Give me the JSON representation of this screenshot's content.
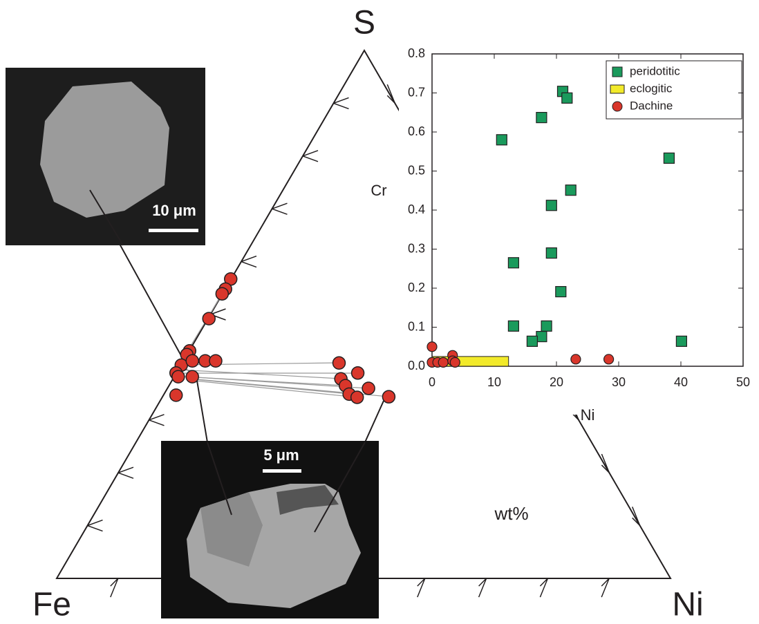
{
  "chart_data": [
    {
      "type": "ternary",
      "corner_labels": {
        "top": "S",
        "left": "Fe",
        "right": "Ni"
      },
      "unit_label": "wt%",
      "series": [
        {
          "color": "#d9362b",
          "S": [
            56.7,
            54.8,
            53.9,
            49.2,
            43.1,
            42.4,
            40.4,
            41.2,
            41.2,
            41.2,
            38.9,
            38.2,
            38.2,
            34.7,
            40.8,
            37.8,
            38.9,
            36.5,
            36.0,
            34.9,
            34.3,
            34.4
          ],
          "Ni": [
            0,
            0.1,
            0,
            0.2,
            0.1,
            0,
            0.1,
            1.5,
            3.6,
            5.3,
            0,
            0.7,
            3.0,
            2.1,
            25.6,
            27.4,
            29.6,
            28.8,
            32.8,
            30.2,
            31.8,
            36.9
          ]
        }
      ]
    },
    {
      "type": "scatter",
      "xlabel": "Ni",
      "ylabel": "Cr",
      "xlim": [
        0,
        50
      ],
      "xticks": [
        0,
        10,
        20,
        30,
        40,
        50
      ],
      "ylim": [
        0,
        0.8
      ],
      "yticks": [
        {
          "value": 0,
          "label": "0.0"
        },
        0.1,
        0.2,
        0.3,
        0.4,
        0.5,
        0.6,
        0.7,
        0.8
      ],
      "legend": "upper right",
      "series": [
        {
          "name": "peridotitic",
          "color": "#1a9a5c",
          "marker": "square",
          "x": [
            11.2,
            17.6,
            21.0,
            21.7,
            38.1,
            22.3,
            19.2,
            19.2,
            13.1,
            20.7,
            13.1,
            18.4,
            17.6,
            16.1,
            40.1
          ],
          "values": [
            0.58,
            0.637,
            0.704,
            0.687,
            0.533,
            0.451,
            0.412,
            0.29,
            0.265,
            0.191,
            0.103,
            0.103,
            0.076,
            0.064,
            0.064
          ]
        },
        {
          "name": "eclogitic",
          "color": "#f2ea2a",
          "marker": "range",
          "xrange": [
            0,
            12.3
          ],
          "yrange": [
            0,
            0.025
          ]
        },
        {
          "name": "Dachine",
          "color": "#d9362b",
          "marker": "circle",
          "x": [
            0,
            0,
            0.9,
            1.8,
            3.3,
            3.3,
            3.7,
            23.1,
            28.4
          ],
          "values": [
            0.05,
            0.01,
            0.01,
            0.01,
            0.028,
            0.014,
            0.01,
            0.018,
            0.018
          ]
        }
      ]
    }
  ],
  "image_labels": [
    "10 μm",
    "5 μm"
  ]
}
